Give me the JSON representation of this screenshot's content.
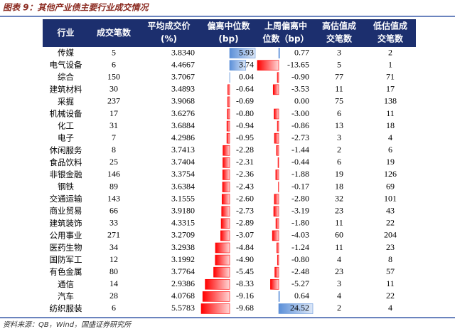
{
  "title": "图表 9：其他产业债主要行业成交情况",
  "table": {
    "header": [
      [
        "行业"
      ],
      [
        "成交笔数"
      ],
      [
        "平均成交价",
        "(%)"
      ],
      [
        "偏离中位数",
        "(bp)"
      ],
      [
        "上周偏离中",
        "位数（bp）"
      ],
      [
        "高估值成",
        "交笔数"
      ],
      [
        "低估值成",
        "交笔数"
      ]
    ],
    "rows": [
      [
        "传媒",
        "5",
        "3.8340",
        "5.93",
        "0.77",
        "3",
        "2"
      ],
      [
        "电气设备",
        "6",
        "4.4667",
        "3.74",
        "-13.65",
        "5",
        "1"
      ],
      [
        "综合",
        "150",
        "3.7067",
        "0.04",
        "-0.90",
        "77",
        "71"
      ],
      [
        "建筑材料",
        "30",
        "3.4893",
        "-0.64",
        "-3.53",
        "11",
        "17"
      ],
      [
        "采掘",
        "237",
        "3.9068",
        "-0.69",
        "0.00",
        "75",
        "138"
      ],
      [
        "机械设备",
        "17",
        "3.6276",
        "-0.80",
        "-3.00",
        "6",
        "11"
      ],
      [
        "化工",
        "31",
        "3.6884",
        "-0.94",
        "-0.86",
        "13",
        "18"
      ],
      [
        "电子",
        "7",
        "4.2986",
        "-0.95",
        "-2.73",
        "3",
        "4"
      ],
      [
        "休闲服务",
        "8",
        "3.7413",
        "-2.28",
        "-1.44",
        "2",
        "6"
      ],
      [
        "食品饮料",
        "25",
        "3.7404",
        "-2.31",
        "-0.44",
        "6",
        "19"
      ],
      [
        "非银金融",
        "146",
        "3.3754",
        "-2.36",
        "-1.88",
        "19",
        "126"
      ],
      [
        "钢铁",
        "89",
        "3.6384",
        "-2.43",
        "-0.17",
        "18",
        "69"
      ],
      [
        "交通运输",
        "143",
        "3.1555",
        "-2.60",
        "-2.80",
        "32",
        "101"
      ],
      [
        "商业贸易",
        "66",
        "3.9180",
        "-2.73",
        "-3.19",
        "23",
        "43"
      ],
      [
        "建筑装饰",
        "33",
        "4.3315",
        "-2.89",
        "-1.80",
        "11",
        "22"
      ],
      [
        "公用事业",
        "271",
        "3.2709",
        "-3.07",
        "-4.03",
        "60",
        "204"
      ],
      [
        "医药生物",
        "34",
        "3.2938",
        "-4.84",
        "-1.24",
        "11",
        "23"
      ],
      [
        "国防军工",
        "12",
        "3.1992",
        "-4.90",
        "-0.80",
        "4",
        "8"
      ],
      [
        "有色金属",
        "80",
        "3.7764",
        "-5.45",
        "-2.48",
        "23",
        "57"
      ],
      [
        "通信",
        "14",
        "2.9386",
        "-8.33",
        "-5.27",
        "3",
        "11"
      ],
      [
        "汽车",
        "28",
        "4.0768",
        "-9.16",
        "0.64",
        "4",
        "22"
      ],
      [
        "纺织服装",
        "6",
        "5.5783",
        "-9.68",
        "24.52",
        "2",
        "4"
      ]
    ]
  },
  "source": "资料来源：QB，Wind，国盛证券研究所"
}
